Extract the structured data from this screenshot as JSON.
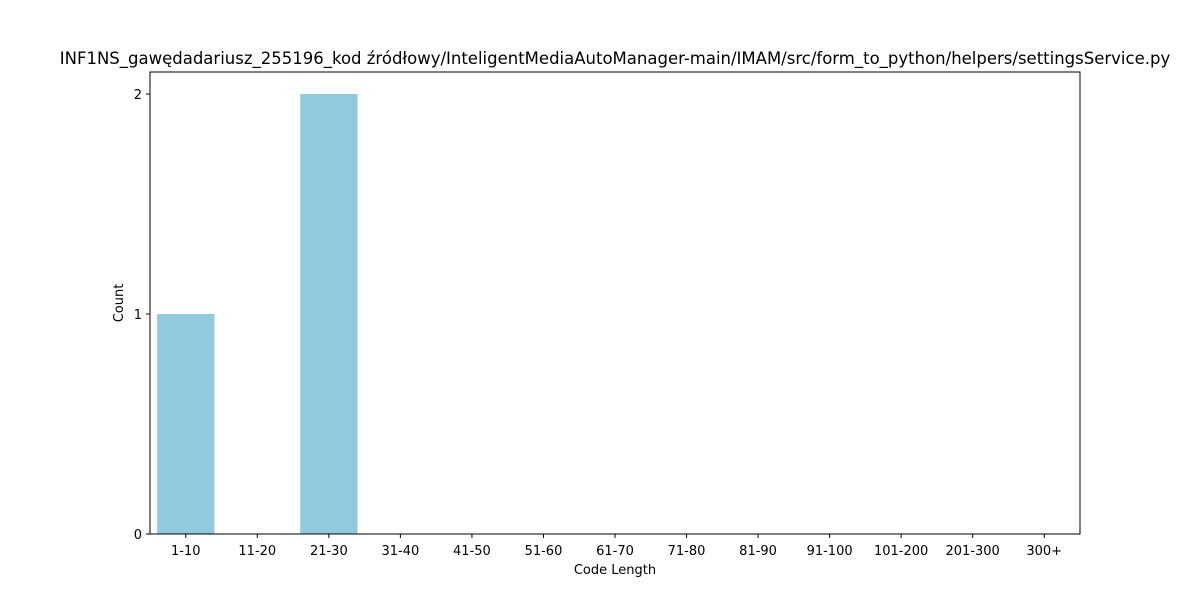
{
  "chart_data": {
    "type": "bar",
    "title": "INF1NS_gawędadariusz_255196_kod źródłowy/InteligentMediaAutoManager-main/IMAM/src/form_to_python/helpers/settingsService.py",
    "xlabel": "Code Length",
    "ylabel": "Count",
    "categories": [
      "1-10",
      "11-20",
      "21-30",
      "31-40",
      "41-50",
      "51-60",
      "61-70",
      "71-80",
      "81-90",
      "91-100",
      "101-200",
      "201-300",
      "300+"
    ],
    "values": [
      1,
      0,
      2,
      0,
      0,
      0,
      0,
      0,
      0,
      0,
      0,
      0,
      0
    ],
    "ylim": [
      0,
      2.1
    ],
    "yticks": [
      0,
      1,
      2
    ],
    "bar_color": "#92c9df",
    "grid": false,
    "legend": "none"
  }
}
